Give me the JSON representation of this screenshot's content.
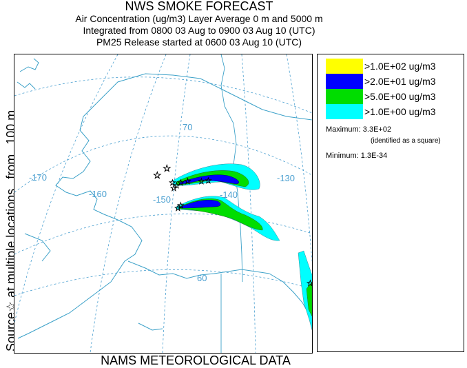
{
  "header": {
    "title": "NWS SMOKE FORECAST",
    "line1": "Air Concentration (ug/m3) Layer Average    0 m and  5000 m",
    "line2": "Integrated from 0800 03 Aug to 0900 03 Aug 10 (UTC)",
    "line3": "PM25 Release started at 0600 03 Aug 10 (UTC)"
  },
  "side_label": {
    "text": "Source☆ at multiple locations",
    "from": "from",
    "height": "100 m"
  },
  "footer": "NAMS METEOROLOGICAL DATA",
  "map": {
    "lon_labels": [
      "-170",
      "-160",
      "-150",
      "-140",
      "-130"
    ],
    "lat_labels": [
      "70",
      "60"
    ],
    "colors": {
      "land": "#3aa0c8",
      "grid": "#4a9fd0",
      "level1": "#ffff00",
      "level2": "#0000ff",
      "level3": "#00dd00",
      "level4": "#00ffff"
    }
  },
  "legend": {
    "items": [
      {
        "label": ">1.0E+02 ug/m3",
        "color": "#ffff00"
      },
      {
        "label": ">2.0E+01 ug/m3",
        "color": "#0000ff"
      },
      {
        "label": ">5.0E+00 ug/m3",
        "color": "#00dd00"
      },
      {
        "label": ">1.0E+00 ug/m3",
        "color": "#00ffff"
      }
    ],
    "max_label": "Maximum:",
    "max_value": "3.3E+02",
    "max_note": "(identified as a square)",
    "min_label": "Minimum:",
    "min_value": "1.3E-34"
  }
}
